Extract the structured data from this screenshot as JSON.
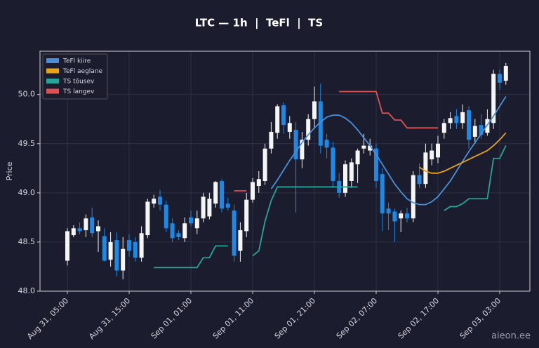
{
  "chart_data": {
    "type": "candlestick",
    "title": "LTC — 1h  |  TeFl  |  TS",
    "ylabel": "Price",
    "watermark": "aieon.ee",
    "categories": [
      "Aug 31, 05:00",
      null,
      null,
      null,
      null,
      null,
      null,
      null,
      null,
      null,
      "Aug 31, 15:00",
      null,
      null,
      null,
      null,
      null,
      null,
      null,
      null,
      null,
      "Sep 01, 01:00",
      null,
      null,
      null,
      null,
      null,
      null,
      null,
      null,
      null,
      "Sep 01, 11:00",
      null,
      null,
      null,
      null,
      null,
      null,
      null,
      null,
      null,
      "Sep 01, 21:00",
      null,
      null,
      null,
      null,
      null,
      null,
      null,
      null,
      null,
      "Sep 02, 07:00",
      null,
      null,
      null,
      null,
      null,
      null,
      null,
      null,
      null,
      "Sep 02, 17:00",
      null,
      null,
      null,
      null,
      null,
      null,
      null,
      null,
      null,
      "Sep 03, 03:00",
      null
    ],
    "open": [
      48.31,
      48.57,
      48.64,
      48.62,
      48.75,
      48.61,
      48.56,
      48.32,
      48.52,
      48.21,
      48.52,
      48.5,
      48.34,
      48.57,
      48.89,
      48.96,
      48.88,
      48.69,
      48.59,
      48.54,
      48.75,
      48.64,
      48.74,
      48.76,
      48.89,
      49.12,
      48.89,
      48.82,
      48.41,
      48.61,
      48.93,
      49.07,
      49.12,
      49.45,
      49.61,
      49.89,
      49.62,
      49.64,
      49.34,
      49.54,
      49.75,
      49.93,
      49.54,
      49.46,
      49.12,
      49.0,
      49.12,
      49.29,
      49.45,
      49.43,
      49.45,
      49.19,
      48.84,
      48.81,
      48.74,
      48.79,
      48.74,
      49.18,
      49.09,
      49.34,
      49.36,
      49.61,
      49.71,
      49.78,
      49.71,
      49.84,
      49.57,
      49.69,
      49.61,
      49.71,
      50.21,
      50.14
    ],
    "high": [
      48.64,
      48.67,
      48.7,
      48.78,
      48.85,
      48.72,
      48.64,
      48.6,
      48.6,
      48.55,
      48.58,
      48.55,
      48.66,
      48.94,
      48.98,
      49.03,
      48.92,
      48.74,
      48.62,
      48.75,
      48.82,
      48.82,
      49.0,
      49.0,
      49.12,
      49.14,
      48.95,
      48.88,
      48.7,
      49.0,
      49.15,
      49.22,
      49.5,
      49.72,
      49.9,
      49.92,
      49.78,
      49.72,
      49.62,
      49.8,
      50.08,
      50.11,
      49.6,
      49.52,
      49.2,
      49.33,
      49.35,
      49.45,
      49.6,
      49.55,
      49.5,
      49.25,
      48.9,
      48.84,
      48.82,
      48.85,
      49.22,
      49.3,
      49.5,
      49.5,
      49.58,
      49.75,
      49.82,
      49.85,
      49.9,
      49.88,
      49.75,
      49.8,
      49.85,
      50.25,
      50.25,
      50.32
    ],
    "low": [
      48.26,
      48.55,
      48.58,
      48.55,
      48.55,
      48.4,
      48.3,
      48.25,
      48.15,
      48.12,
      48.35,
      48.3,
      48.3,
      48.54,
      48.85,
      48.82,
      48.6,
      48.5,
      48.52,
      48.5,
      48.66,
      48.58,
      48.7,
      48.73,
      48.85,
      48.8,
      48.82,
      48.3,
      48.3,
      48.55,
      48.9,
      49.0,
      49.08,
      49.4,
      49.55,
      49.6,
      49.55,
      48.8,
      49.25,
      49.48,
      49.65,
      49.4,
      49.35,
      49.05,
      48.95,
      48.96,
      49.05,
      49.1,
      49.4,
      49.38,
      49.05,
      48.61,
      48.62,
      48.5,
      48.6,
      48.7,
      48.7,
      49.05,
      49.05,
      49.28,
      49.3,
      49.55,
      49.65,
      49.65,
      49.65,
      49.45,
      49.5,
      49.55,
      49.58,
      49.65,
      50.05,
      50.1
    ],
    "close": [
      48.61,
      48.64,
      48.61,
      48.74,
      48.59,
      48.66,
      48.31,
      48.5,
      48.21,
      48.43,
      48.41,
      48.34,
      48.59,
      48.91,
      48.94,
      48.88,
      48.64,
      48.54,
      48.55,
      48.69,
      48.69,
      48.74,
      48.96,
      48.94,
      49.11,
      48.84,
      48.85,
      48.36,
      48.62,
      48.93,
      49.11,
      49.14,
      49.45,
      49.62,
      49.88,
      49.69,
      49.71,
      49.34,
      49.54,
      49.75,
      49.93,
      49.48,
      49.46,
      49.12,
      49.0,
      49.29,
      49.31,
      49.43,
      49.48,
      49.48,
      49.12,
      48.79,
      48.79,
      48.71,
      48.79,
      48.74,
      49.18,
      49.09,
      49.41,
      49.43,
      49.5,
      49.71,
      49.76,
      49.71,
      49.82,
      49.54,
      49.68,
      49.59,
      49.75,
      50.21,
      50.12,
      50.29
    ],
    "up_color": "#f5f5f5",
    "down_color": "#1e88e5",
    "series": [
      {
        "name": "TeFl kiire",
        "color": "#4a90d9",
        "values": [
          null,
          null,
          null,
          null,
          null,
          null,
          null,
          null,
          null,
          null,
          null,
          null,
          null,
          null,
          null,
          null,
          null,
          null,
          null,
          null,
          null,
          null,
          null,
          null,
          null,
          null,
          null,
          null,
          null,
          null,
          null,
          null,
          null,
          49.04,
          49.13,
          49.23,
          49.33,
          49.42,
          49.51,
          49.59,
          49.66,
          49.72,
          49.77,
          49.79,
          49.79,
          49.76,
          49.71,
          49.64,
          49.56,
          49.48,
          49.39,
          49.29,
          49.19,
          49.09,
          49.01,
          48.94,
          48.9,
          48.88,
          48.88,
          48.91,
          48.96,
          49.04,
          49.12,
          49.22,
          49.32,
          49.42,
          49.51,
          49.6,
          49.69,
          49.78,
          49.88,
          49.98
        ]
      },
      {
        "name": "TeFl aeglane",
        "color": "#e8a317",
        "values": [
          null,
          null,
          null,
          null,
          null,
          null,
          null,
          null,
          null,
          null,
          null,
          null,
          null,
          null,
          null,
          null,
          null,
          null,
          null,
          null,
          null,
          null,
          null,
          null,
          null,
          null,
          null,
          null,
          null,
          null,
          null,
          null,
          null,
          null,
          null,
          null,
          null,
          null,
          null,
          null,
          null,
          null,
          null,
          null,
          null,
          null,
          null,
          null,
          null,
          null,
          null,
          null,
          null,
          null,
          null,
          null,
          null,
          49.26,
          49.22,
          49.2,
          49.2,
          49.22,
          49.25,
          49.28,
          49.31,
          49.34,
          49.37,
          49.4,
          49.43,
          49.48,
          49.54,
          49.61
        ]
      },
      {
        "name": "TS tõusev",
        "color": "#26a69a",
        "values": [
          null,
          null,
          null,
          null,
          null,
          null,
          null,
          null,
          null,
          null,
          null,
          null,
          null,
          null,
          48.24,
          48.24,
          48.24,
          48.24,
          48.24,
          48.24,
          48.24,
          48.24,
          48.34,
          48.34,
          48.46,
          48.46,
          48.46,
          null,
          null,
          null,
          48.36,
          48.41,
          48.71,
          48.92,
          49.06,
          49.06,
          49.06,
          49.06,
          49.06,
          49.06,
          49.06,
          49.06,
          49.06,
          49.06,
          49.06,
          49.06,
          49.06,
          49.06,
          null,
          null,
          null,
          null,
          null,
          null,
          null,
          null,
          null,
          null,
          null,
          null,
          null,
          48.82,
          48.86,
          48.86,
          48.89,
          48.94,
          48.94,
          48.94,
          48.94,
          49.35,
          49.35,
          49.48
        ]
      },
      {
        "name": "TS langev",
        "color": "#e05252",
        "values": [
          null,
          null,
          null,
          null,
          null,
          null,
          null,
          null,
          null,
          null,
          null,
          null,
          null,
          null,
          null,
          null,
          null,
          null,
          null,
          null,
          null,
          null,
          null,
          null,
          null,
          null,
          null,
          49.02,
          49.02,
          49.02,
          null,
          null,
          null,
          null,
          null,
          null,
          null,
          null,
          null,
          null,
          null,
          null,
          null,
          null,
          50.03,
          50.03,
          50.03,
          50.03,
          50.03,
          50.03,
          50.03,
          49.81,
          49.81,
          49.74,
          49.74,
          49.66,
          49.66,
          49.66,
          49.66,
          49.66,
          49.66,
          null,
          null,
          null,
          null,
          null,
          null,
          null,
          null,
          null,
          null,
          null
        ]
      }
    ],
    "ylim": [
      48.0,
      50.44
    ],
    "yticks": [
      {
        "value": 48,
        "label": "48.0"
      },
      {
        "value": 48.5,
        "label": "48.5"
      },
      {
        "value": 49,
        "label": "49.0"
      },
      {
        "value": 49.5,
        "label": "49.5"
      },
      {
        "value": 50,
        "label": "50.0"
      }
    ],
    "grid": true,
    "legend": "upper left"
  }
}
